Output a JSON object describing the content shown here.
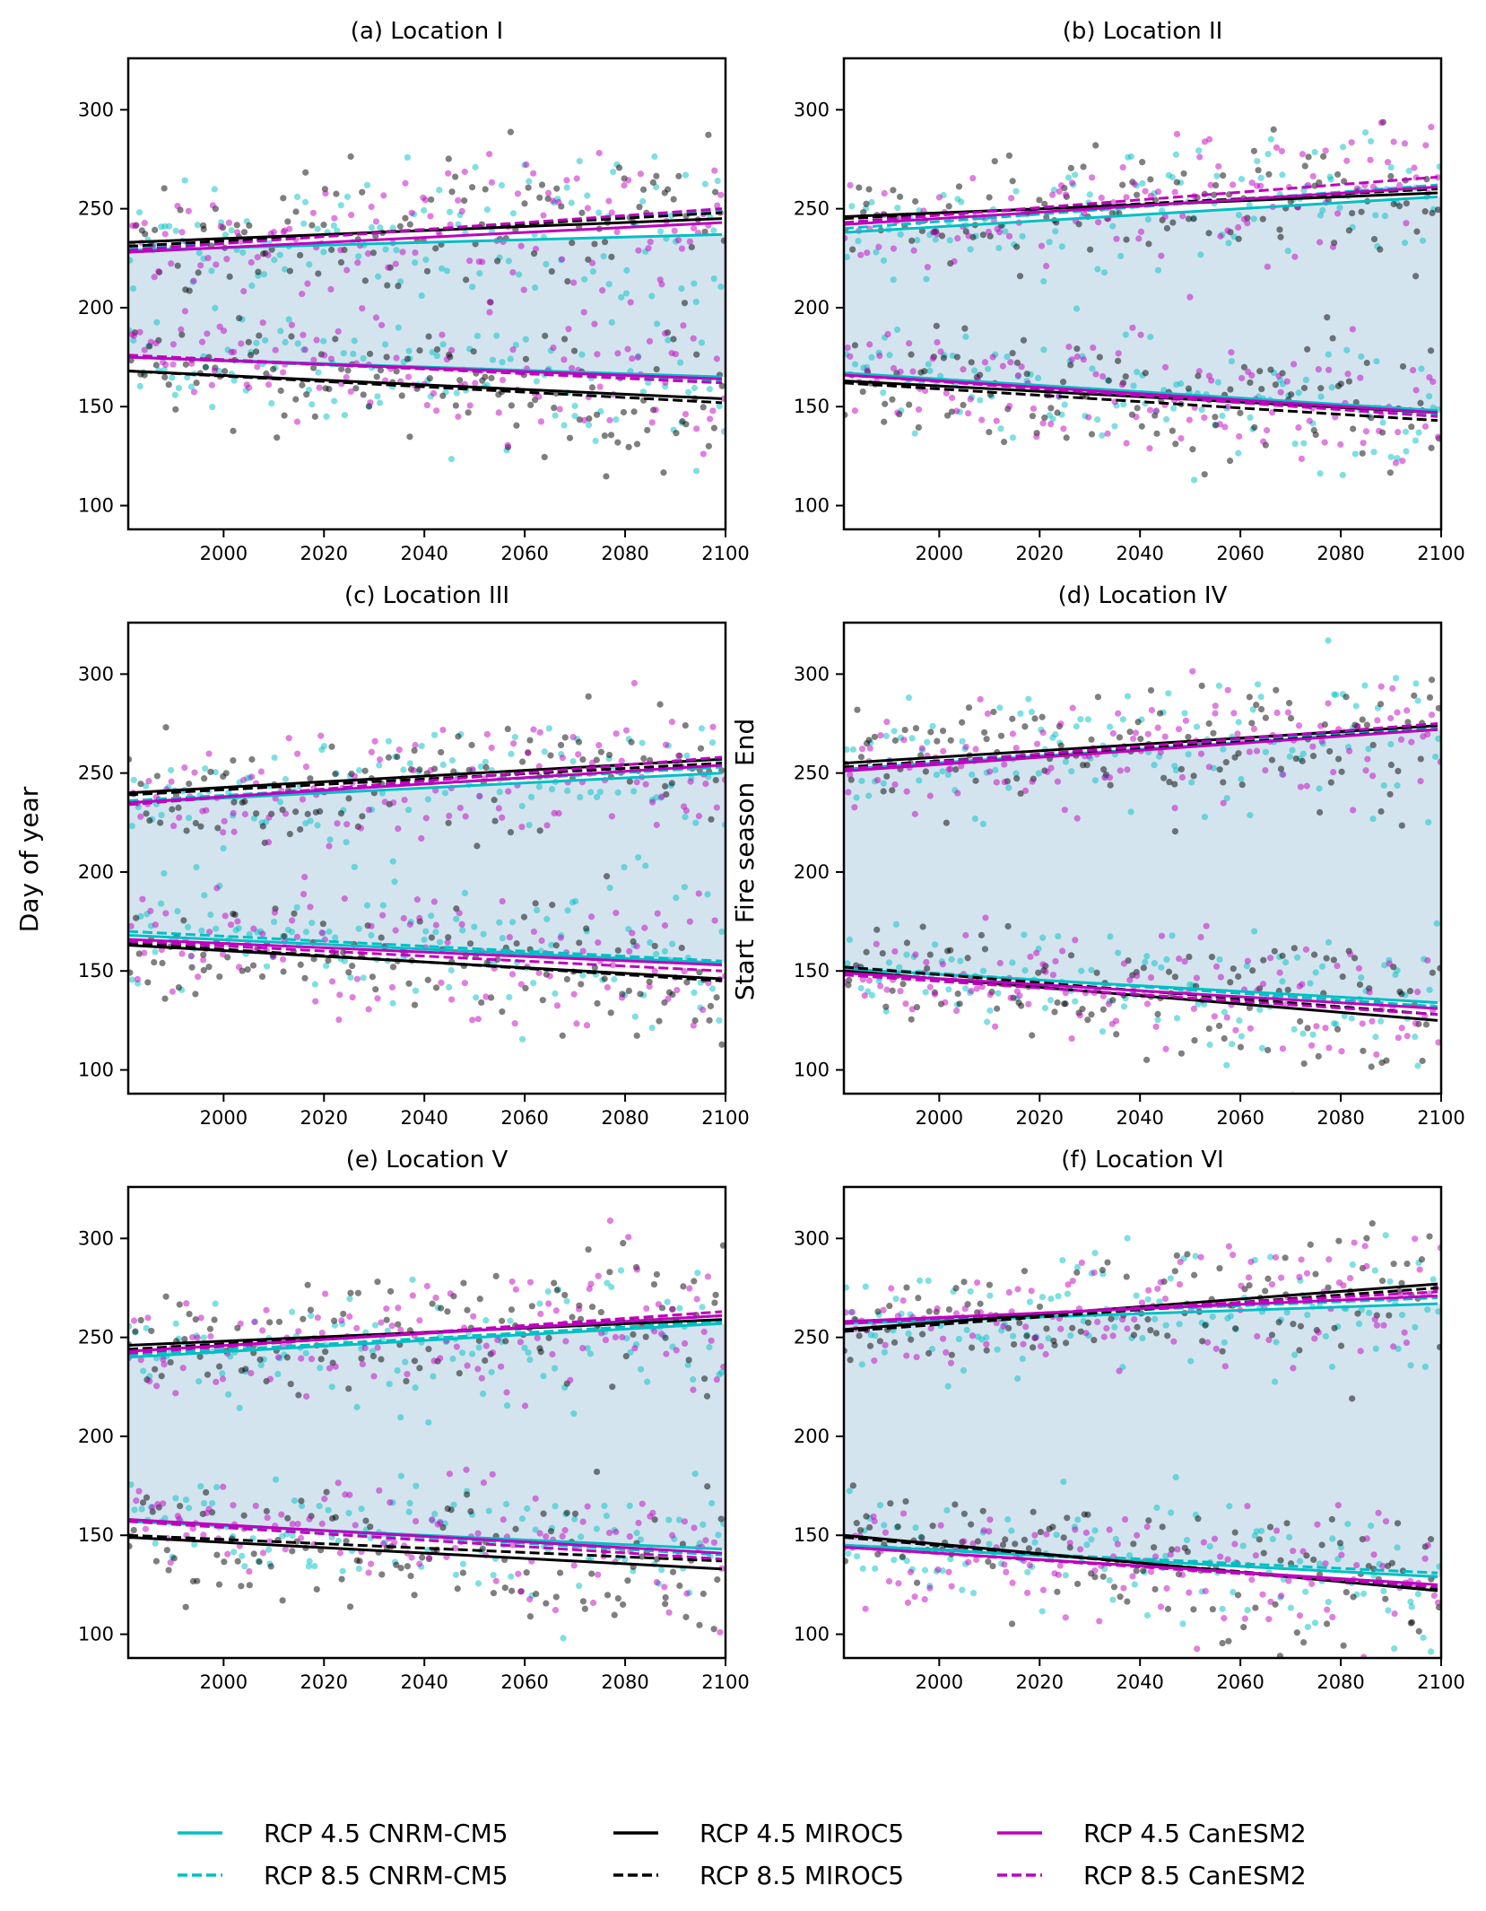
{
  "ylabel_left": "Day of year",
  "ylabel_mid": "Start  Fire season  End",
  "legend": [
    {
      "label": "RCP 4.5 CNRM-CM5",
      "color": "#00bfc4",
      "dash": false
    },
    {
      "label": "RCP 8.5 CNRM-CM5",
      "color": "#00bfc4",
      "dash": true
    },
    {
      "label": "RCP 4.5 MIROC5",
      "color": "#000000",
      "dash": false
    },
    {
      "label": "RCP 8.5 MIROC5",
      "color": "#000000",
      "dash": true
    },
    {
      "label": "RCP 4.5 CanESM2",
      "color": "#bf00bf",
      "dash": false
    },
    {
      "label": "RCP 8.5 CanESM2",
      "color": "#bf00bf",
      "dash": true
    }
  ],
  "chart_data": [
    {
      "type": "scatter",
      "title": "(a) Location I",
      "xlim": [
        1981,
        2100
      ],
      "ylim": [
        88,
        326
      ],
      "xticks": [
        2000,
        2020,
        2040,
        2060,
        2080,
        2100
      ],
      "yticks": [
        100,
        150,
        200,
        250,
        300
      ],
      "shade_color": "#d4e4ef",
      "trend_x": [
        1981,
        2100
      ],
      "end": [
        [
          229,
          237
        ],
        [
          230,
          249
        ],
        [
          233,
          245
        ],
        [
          231,
          248
        ],
        [
          228,
          243
        ],
        [
          229,
          250
        ]
      ],
      "start": [
        [
          175,
          165
        ],
        [
          175,
          163
        ],
        [
          168,
          154
        ],
        [
          168,
          152
        ],
        [
          175,
          164
        ],
        [
          176,
          162
        ]
      ]
    },
    {
      "type": "scatter",
      "title": "(b) Location II",
      "xlim": [
        1981,
        2100
      ],
      "ylim": [
        88,
        326
      ],
      "xticks": [
        2000,
        2020,
        2040,
        2060,
        2080,
        2100
      ],
      "yticks": [
        100,
        150,
        200,
        250,
        300
      ],
      "shade_color": "#d4e4ef",
      "trend_x": [
        1981,
        2100
      ],
      "end": [
        [
          238,
          256
        ],
        [
          240,
          262
        ],
        [
          246,
          258
        ],
        [
          245,
          260
        ],
        [
          242,
          261
        ],
        [
          243,
          266
        ]
      ],
      "start": [
        [
          167,
          148
        ],
        [
          167,
          146
        ],
        [
          163,
          147
        ],
        [
          162,
          143
        ],
        [
          166,
          147
        ],
        [
          166,
          145
        ]
      ]
    },
    {
      "type": "scatter",
      "title": "(c) Location III",
      "xlim": [
        1981,
        2100
      ],
      "ylim": [
        88,
        326
      ],
      "xticks": [
        2000,
        2020,
        2040,
        2060,
        2080,
        2100
      ],
      "yticks": [
        100,
        150,
        200,
        250,
        300
      ],
      "shade_color": "#d4e4ef",
      "trend_x": [
        1981,
        2100
      ],
      "end": [
        [
          235,
          250
        ],
        [
          236,
          253
        ],
        [
          240,
          257
        ],
        [
          239,
          255
        ],
        [
          235,
          254
        ],
        [
          234,
          258
        ]
      ],
      "start": [
        [
          168,
          154
        ],
        [
          170,
          155
        ],
        [
          163,
          146
        ],
        [
          164,
          145
        ],
        [
          166,
          153
        ],
        [
          165,
          150
        ]
      ]
    },
    {
      "type": "scatter",
      "title": "(d) Location IV",
      "xlim": [
        1981,
        2100
      ],
      "ylim": [
        88,
        326
      ],
      "xticks": [
        2000,
        2020,
        2040,
        2060,
        2080,
        2100
      ],
      "yticks": [
        100,
        150,
        200,
        250,
        300
      ],
      "shade_color": "#d4e4ef",
      "trend_x": [
        1981,
        2100
      ],
      "end": [
        [
          252,
          272
        ],
        [
          253,
          273
        ],
        [
          255,
          274
        ],
        [
          253,
          272
        ],
        [
          251,
          272
        ],
        [
          252,
          275
        ]
      ],
      "start": [
        [
          151,
          134
        ],
        [
          152,
          132
        ],
        [
          150,
          125
        ],
        [
          152,
          128
        ],
        [
          149,
          131
        ],
        [
          148,
          128
        ]
      ]
    },
    {
      "type": "scatter",
      "title": "(e) Location V",
      "xlim": [
        1981,
        2100
      ],
      "ylim": [
        88,
        326
      ],
      "xticks": [
        2000,
        2020,
        2040,
        2060,
        2080,
        2100
      ],
      "yticks": [
        100,
        150,
        200,
        250,
        300
      ],
      "shade_color": "#d4e4ef",
      "trend_x": [
        1981,
        2100
      ],
      "end": [
        [
          240,
          257
        ],
        [
          241,
          258
        ],
        [
          246,
          259
        ],
        [
          244,
          261
        ],
        [
          243,
          261
        ],
        [
          242,
          263
        ]
      ],
      "start": [
        [
          157,
          143
        ],
        [
          158,
          140
        ],
        [
          149,
          133
        ],
        [
          150,
          137
        ],
        [
          158,
          141
        ],
        [
          157,
          138
        ]
      ]
    },
    {
      "type": "scatter",
      "title": "(f) Location VI",
      "xlim": [
        1981,
        2100
      ],
      "ylim": [
        88,
        326
      ],
      "xticks": [
        2000,
        2020,
        2040,
        2060,
        2080,
        2100
      ],
      "yticks": [
        100,
        150,
        200,
        250,
        300
      ],
      "shade_color": "#d4e4ef",
      "trend_x": [
        1981,
        2100
      ],
      "end": [
        [
          257,
          267
        ],
        [
          258,
          270
        ],
        [
          254,
          277
        ],
        [
          253,
          275
        ],
        [
          258,
          271
        ],
        [
          257,
          273
        ]
      ],
      "start": [
        [
          145,
          129
        ],
        [
          145,
          131
        ],
        [
          150,
          122
        ],
        [
          149,
          123
        ],
        [
          144,
          125
        ],
        [
          144,
          124
        ]
      ]
    }
  ]
}
